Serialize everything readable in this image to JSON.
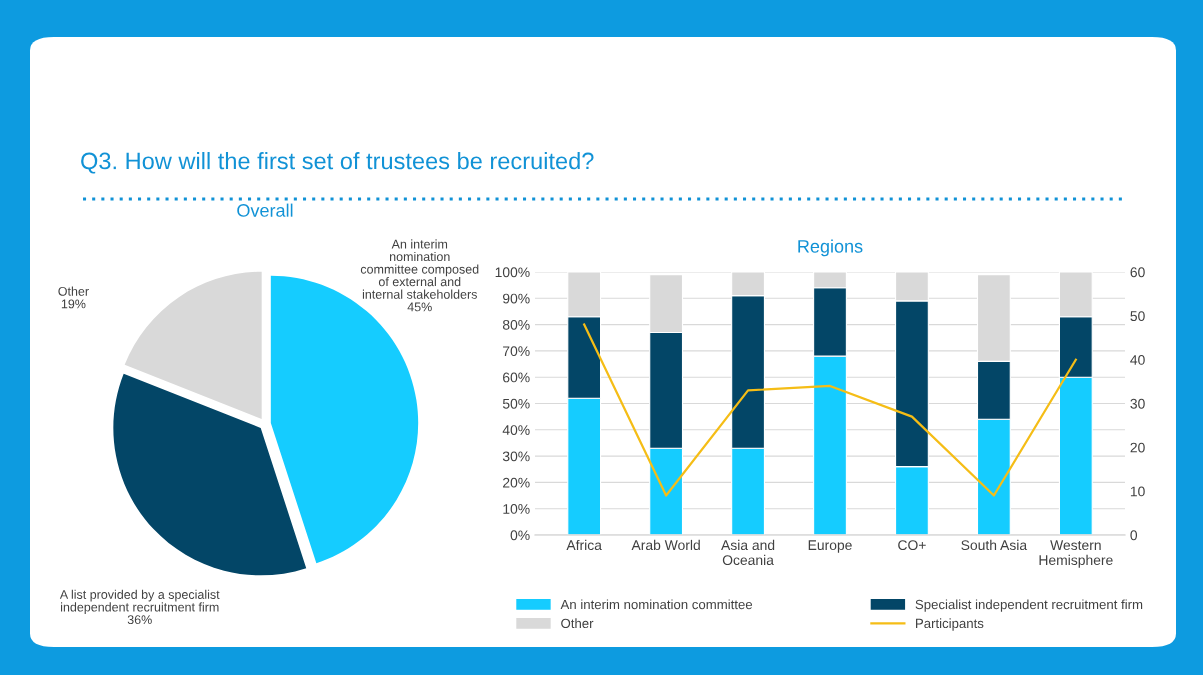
{
  "chart_data": [
    {
      "type": "pie",
      "title": "Overall",
      "annotations": [
        "Q3. How will the first set of trustees be recruited?"
      ],
      "categories": [
        "An interim\nnomination\ncommittee composed\nof external and\ninternal stakeholders",
        "A list provided by a specialist\nindependent recruitment firm",
        "Other"
      ],
      "values": [
        45,
        36,
        19
      ],
      "value_labels": [
        "45%",
        "36%",
        "19%"
      ],
      "colors": [
        "#15ccff",
        "#034667",
        "#d9d9d9"
      ],
      "legend": false
    },
    {
      "type": "bar",
      "title": "Regions",
      "stacked": true,
      "categories": [
        "Africa",
        "Arab World",
        "Asia and\nOceania",
        "Europe",
        "CO+",
        "South Asia",
        "Western\nHemisphere"
      ],
      "series": [
        {
          "name": "An interim nomination committee",
          "color": "#15ccff",
          "values": [
            52,
            33,
            33,
            68,
            26,
            44,
            60
          ]
        },
        {
          "name": "Specialist independent recruitment firm",
          "color": "#034667",
          "values": [
            31,
            44,
            58,
            26,
            63,
            22,
            23
          ]
        },
        {
          "name": "Other",
          "color": "#d9d9d9",
          "values": [
            17,
            22,
            9,
            6,
            11,
            33,
            17
          ]
        },
        {
          "name": "Participants",
          "type": "line",
          "axis": "y2",
          "color": "#f5bd16",
          "values": [
            48,
            9,
            33,
            34,
            27,
            9,
            40
          ]
        }
      ],
      "ylim": [
        0,
        100
      ],
      "yticks": [
        {
          "value": 0,
          "label": "0%"
        },
        {
          "value": 10,
          "label": "10%"
        },
        {
          "value": 20,
          "label": "20%"
        },
        {
          "value": 30,
          "label": "30%"
        },
        {
          "value": 40,
          "label": "40%"
        },
        {
          "value": 50,
          "label": "50%"
        },
        {
          "value": 60,
          "label": "60%"
        },
        {
          "value": 70,
          "label": "70%"
        },
        {
          "value": 80,
          "label": "80%"
        },
        {
          "value": 90,
          "label": "90%"
        },
        {
          "value": 100,
          "label": "100%"
        }
      ],
      "y2lim": [
        0,
        60
      ],
      "y2ticks": [
        0,
        10,
        20,
        30,
        40,
        50,
        60
      ],
      "grid": "y",
      "legend": "bottom"
    }
  ]
}
